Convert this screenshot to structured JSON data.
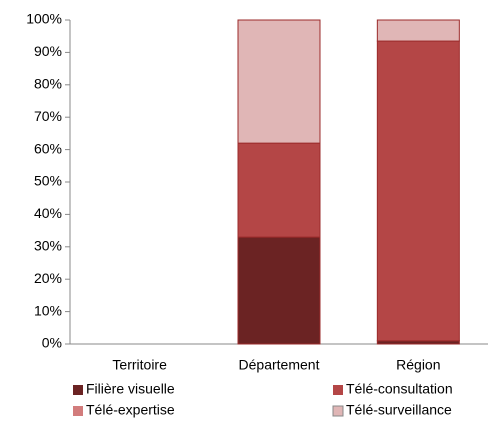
{
  "chart_data": {
    "type": "stacked_bar",
    "categories": [
      "Territoire",
      "Département",
      "Région"
    ],
    "series": [
      {
        "name": "Filière visuelle",
        "color": "#6b2323",
        "values": [
          0,
          33,
          1
        ]
      },
      {
        "name": "Télé-consultation",
        "color": "#b44646",
        "values": [
          0,
          29,
          92.5
        ]
      },
      {
        "name": "Télé-expertise",
        "color": "#d27c7c",
        "values": [
          0,
          0,
          0
        ]
      },
      {
        "name": "Télé-surveillance",
        "color": "#e0b6b6",
        "values": [
          0,
          38,
          6.5
        ]
      }
    ],
    "ylim": [
      0,
      100
    ],
    "yticks": [
      {
        "value": 0,
        "label": "0%"
      },
      {
        "value": 10,
        "label": "10%"
      },
      {
        "value": 20,
        "label": "20%"
      },
      {
        "value": 30,
        "label": "30%"
      },
      {
        "value": 40,
        "label": "40%"
      },
      {
        "value": 50,
        "label": "50%"
      },
      {
        "value": 60,
        "label": "60%"
      },
      {
        "value": 70,
        "label": "70%"
      },
      {
        "value": 80,
        "label": "80%"
      },
      {
        "value": 90,
        "label": "90%"
      },
      {
        "value": 100,
        "label": "100%"
      }
    ],
    "grid": false
  }
}
